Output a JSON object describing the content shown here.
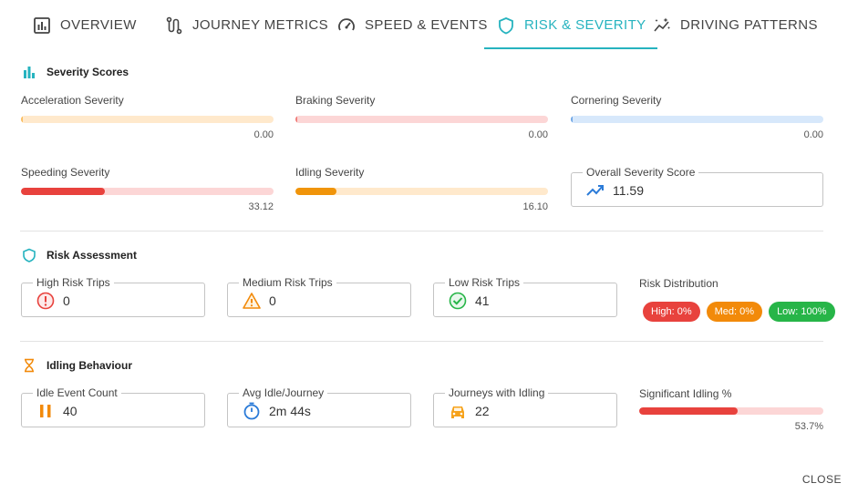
{
  "tabs": [
    {
      "label": "Overview",
      "icon": "bar-chart-box-icon"
    },
    {
      "label": "Journey Metrics",
      "icon": "route-icon"
    },
    {
      "label": "Speed & Events",
      "icon": "speedometer-icon"
    },
    {
      "label": "Risk & Severity",
      "icon": "shield-icon",
      "active": true
    },
    {
      "label": "Driving Patterns",
      "icon": "sparkle-chart-icon"
    }
  ],
  "severity": {
    "title": "Severity Scores",
    "items": [
      {
        "label": "Acceleration Severity",
        "value": "0.00",
        "fraction": 0.0,
        "track": "#ffe9cc",
        "fill": "#f6a21b"
      },
      {
        "label": "Braking Severity",
        "value": "0.00",
        "fraction": 0.0,
        "track": "#fcd6d6",
        "fill": "#e8423d"
      },
      {
        "label": "Cornering Severity",
        "value": "0.00",
        "fraction": 0.0,
        "track": "#d7e8fb",
        "fill": "#2b7bd8"
      },
      {
        "label": "Speeding Severity",
        "value": "33.12",
        "fraction": 0.3312,
        "track": "#fcd6d6",
        "fill": "#e8423d"
      },
      {
        "label": "Idling Severity",
        "value": "16.10",
        "fraction": 0.161,
        "track": "#ffe9cc",
        "fill": "#f0940a"
      }
    ],
    "overall": {
      "label": "Overall Severity Score",
      "value": "11.59",
      "icon": "trending-up-icon"
    }
  },
  "risk": {
    "title": "Risk Assessment",
    "high": {
      "label": "High Risk Trips",
      "value": "0",
      "icon": "error-icon"
    },
    "medium": {
      "label": "Medium Risk Trips",
      "value": "0",
      "icon": "warning-icon"
    },
    "low": {
      "label": "Low Risk Trips",
      "value": "41",
      "icon": "check-circle-icon"
    },
    "distribution": {
      "label": "Risk Distribution",
      "chips": [
        {
          "label": "High: 0%",
          "color": "#e8423d"
        },
        {
          "label": "Med: 0%",
          "color": "#f28a0a"
        },
        {
          "label": "Low: 100%",
          "color": "#27b548"
        }
      ]
    }
  },
  "idling": {
    "title": "Idling Behaviour",
    "event_count": {
      "label": "Idle Event Count",
      "value": "40",
      "icon": "pause-icon"
    },
    "avg_idle": {
      "label": "Avg Idle/Journey",
      "value": "2m 44s",
      "icon": "timer-icon"
    },
    "journeys": {
      "label": "Journeys with Idling",
      "value": "22",
      "icon": "car-icon"
    },
    "significant": {
      "label": "Significant Idling %",
      "value": "53.7%",
      "fraction": 0.537
    }
  },
  "footer": {
    "close_label": "Close"
  },
  "colors": {
    "accent": "#26b3bf",
    "red": "#e8423d",
    "orange": "#f28a0a",
    "green": "#27b548",
    "blue": "#2b7bd8"
  }
}
